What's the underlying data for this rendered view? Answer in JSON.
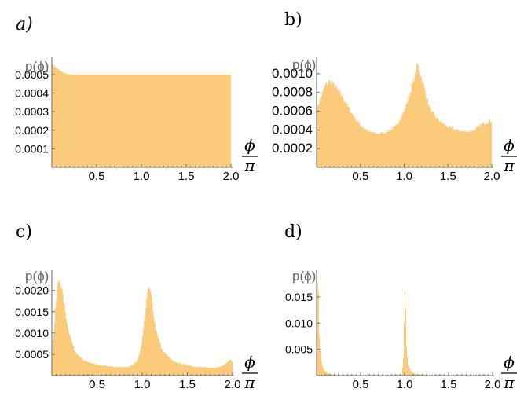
{
  "chart_data": [
    {
      "type": "area",
      "panel_label": "a)",
      "ylabel": "p(ϕ)",
      "xlabel_num": "ϕ",
      "xlabel_den": "π",
      "xlim": [
        0,
        2.0
      ],
      "ylim": [
        0,
        0.00058
      ],
      "x_ticks": [
        "0.5",
        "1.0",
        "1.5",
        "2.0"
      ],
      "y_ticks": [
        "0.0001",
        "0.0002",
        "0.0003",
        "0.0004",
        "0.0005"
      ],
      "fill_color": "#fbcb7b",
      "profile": [
        [
          0,
          0.000565
        ],
        [
          0.02,
          0.00055
        ],
        [
          0.05,
          0.000535
        ],
        [
          0.1,
          0.00052
        ],
        [
          0.15,
          0.000505
        ],
        [
          0.2,
          0.0005
        ],
        [
          1.0,
          0.0005
        ],
        [
          2.0,
          0.0005
        ]
      ]
    },
    {
      "type": "area",
      "panel_label": "b)",
      "ylabel": "p(ϕ)",
      "xlabel_num": "ϕ",
      "xlabel_den": "π",
      "xlim": [
        0,
        2.0
      ],
      "ylim": [
        0,
        0.00115
      ],
      "x_ticks": [
        "0.5",
        "1.0",
        "1.5",
        "2.0"
      ],
      "y_ticks": [
        "0.0002",
        "0.0004",
        "0.0006",
        "0.0008",
        "0.0010"
      ],
      "fill_color": "#fbcb7b",
      "profile": [
        [
          0,
          0.0006
        ],
        [
          0.05,
          0.00075
        ],
        [
          0.1,
          0.00088
        ],
        [
          0.15,
          0.00092
        ],
        [
          0.2,
          0.00088
        ],
        [
          0.3,
          0.00075
        ],
        [
          0.4,
          0.00058
        ],
        [
          0.5,
          0.00045
        ],
        [
          0.6,
          0.00038
        ],
        [
          0.7,
          0.00036
        ],
        [
          0.8,
          0.00038
        ],
        [
          0.9,
          0.00043
        ],
        [
          1.0,
          0.0006
        ],
        [
          1.1,
          0.0009
        ],
        [
          1.15,
          0.0011
        ],
        [
          1.2,
          0.00095
        ],
        [
          1.3,
          0.0006
        ],
        [
          1.4,
          0.0005
        ],
        [
          1.5,
          0.00043
        ],
        [
          1.6,
          0.0004
        ],
        [
          1.7,
          0.00038
        ],
        [
          1.8,
          0.0004
        ],
        [
          1.9,
          0.00047
        ],
        [
          2.0,
          0.0005
        ]
      ]
    },
    {
      "type": "area",
      "panel_label": "c)",
      "ylabel": "p(ϕ)",
      "xlabel_num": "ϕ",
      "xlabel_den": "π",
      "xlim": [
        0,
        2.0
      ],
      "ylim": [
        0,
        0.0024
      ],
      "x_ticks": [
        "0.5",
        "1.0",
        "1.5",
        "2.0"
      ],
      "y_ticks": [
        "0.0005",
        "0.0010",
        "0.0015",
        "0.0020"
      ],
      "fill_color": "#fbcb7b",
      "profile": [
        [
          0,
          0.0003
        ],
        [
          0.03,
          0.0012
        ],
        [
          0.06,
          0.0021
        ],
        [
          0.09,
          0.0023
        ],
        [
          0.12,
          0.0019
        ],
        [
          0.18,
          0.0011
        ],
        [
          0.25,
          0.0006
        ],
        [
          0.35,
          0.00035
        ],
        [
          0.5,
          0.00025
        ],
        [
          0.7,
          0.0002
        ],
        [
          0.85,
          0.0002
        ],
        [
          0.95,
          0.00035
        ],
        [
          1.0,
          0.0008
        ],
        [
          1.04,
          0.0016
        ],
        [
          1.07,
          0.0021
        ],
        [
          1.1,
          0.0019
        ],
        [
          1.15,
          0.0011
        ],
        [
          1.22,
          0.0006
        ],
        [
          1.35,
          0.00032
        ],
        [
          1.6,
          0.0002
        ],
        [
          1.8,
          0.00018
        ],
        [
          1.9,
          0.00024
        ],
        [
          1.98,
          0.00038
        ],
        [
          2.0,
          0.0003
        ]
      ]
    },
    {
      "type": "area",
      "panel_label": "d)",
      "ylabel": "p(ϕ)",
      "xlabel_num": "ϕ",
      "xlabel_den": "π",
      "xlim": [
        0,
        2.0
      ],
      "ylim": [
        0,
        0.0195
      ],
      "x_ticks": [
        "0.5",
        "1.0",
        "1.5",
        "2.0"
      ],
      "y_ticks": [
        "0.005",
        "0.010",
        "0.015"
      ],
      "fill_color": "#fbcb7b",
      "profile": [
        [
          0,
          0.0005
        ],
        [
          0.01,
          0.018
        ],
        [
          0.02,
          0.0185
        ],
        [
          0.03,
          0.008
        ],
        [
          0.05,
          0.003
        ],
        [
          0.08,
          0.0012
        ],
        [
          0.12,
          0.0005
        ],
        [
          0.2,
          0.0001
        ],
        [
          0.9,
          5e-05
        ],
        [
          0.97,
          0.0002
        ],
        [
          0.99,
          0.004
        ],
        [
          1.0,
          0.0155
        ],
        [
          1.01,
          0.0158
        ],
        [
          1.02,
          0.006
        ],
        [
          1.04,
          0.002
        ],
        [
          1.08,
          0.0006
        ],
        [
          1.15,
          0.0002
        ],
        [
          1.3,
          5e-05
        ],
        [
          2.0,
          2e-05
        ]
      ]
    }
  ]
}
